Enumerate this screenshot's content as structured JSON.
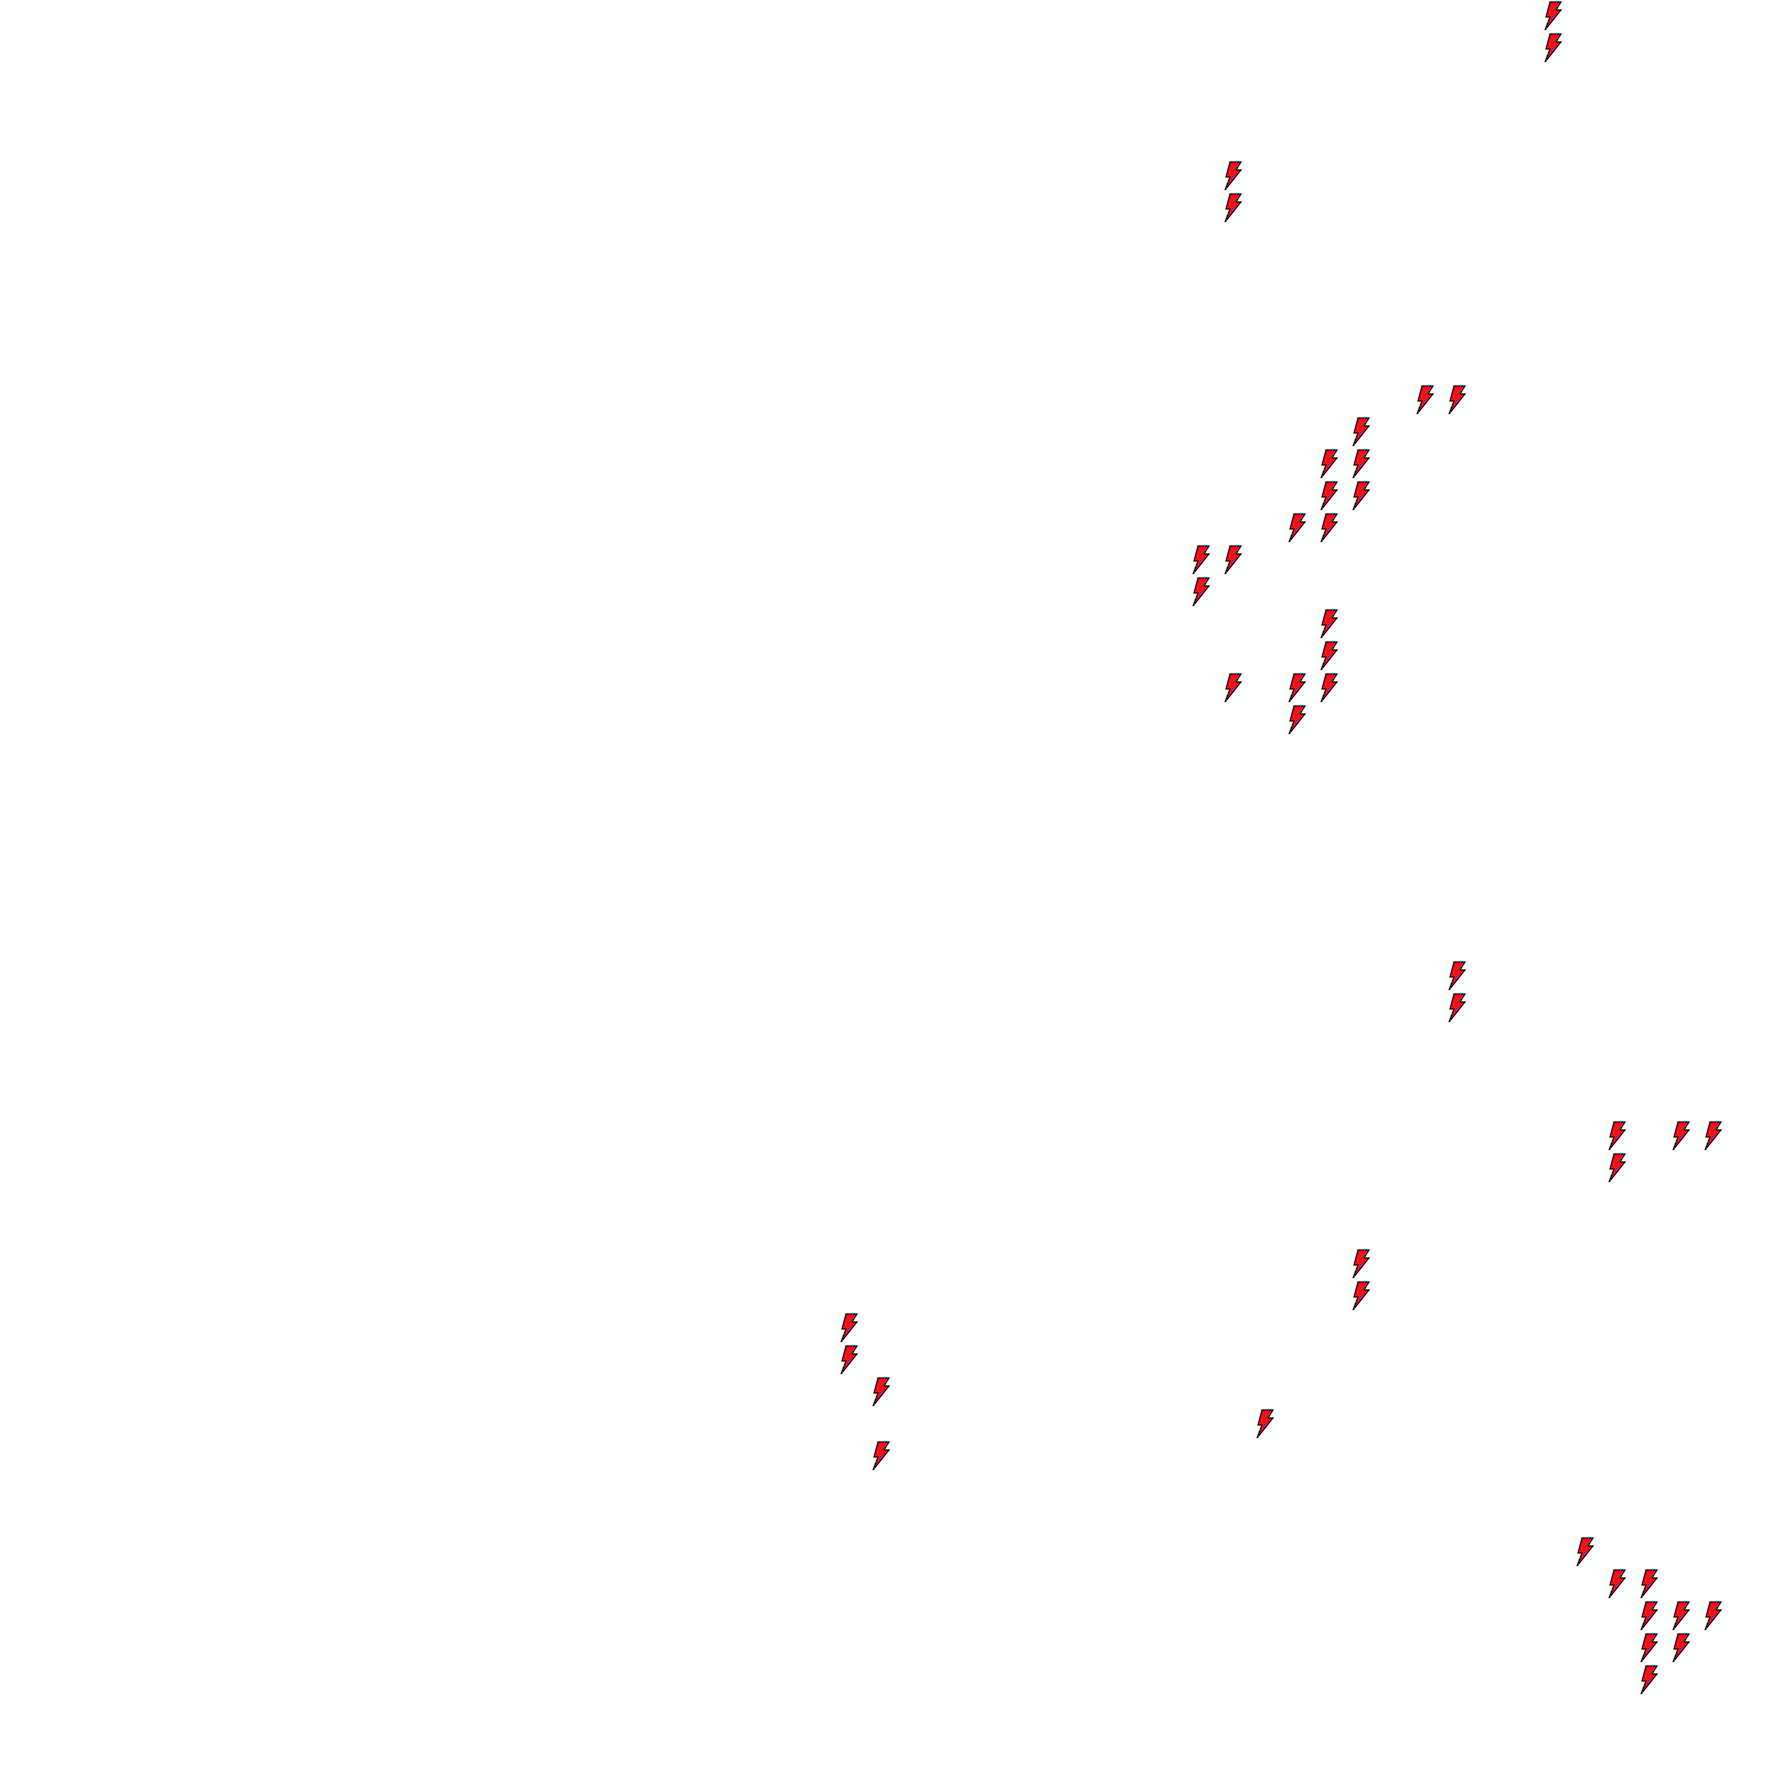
{
  "board": {
    "grid_columns": 56,
    "grid_rows": 56,
    "icon": "lightning-bolt-icon",
    "icon_fill": "#f2101c",
    "icon_stroke": "#000000",
    "background": "#ffffff",
    "cells": [
      [
        48,
        0
      ],
      [
        48,
        1
      ],
      [
        38,
        5
      ],
      [
        38,
        6
      ],
      [
        44,
        12
      ],
      [
        45,
        12
      ],
      [
        42,
        13
      ],
      [
        41,
        14
      ],
      [
        42,
        14
      ],
      [
        41,
        15
      ],
      [
        42,
        15
      ],
      [
        40,
        16
      ],
      [
        41,
        16
      ],
      [
        37,
        17
      ],
      [
        38,
        17
      ],
      [
        37,
        18
      ],
      [
        41,
        19
      ],
      [
        41,
        20
      ],
      [
        38,
        21
      ],
      [
        40,
        21
      ],
      [
        41,
        21
      ],
      [
        40,
        22
      ],
      [
        45,
        30
      ],
      [
        45,
        31
      ],
      [
        50,
        35
      ],
      [
        52,
        35
      ],
      [
        53,
        35
      ],
      [
        50,
        36
      ],
      [
        42,
        39
      ],
      [
        42,
        40
      ],
      [
        26,
        41
      ],
      [
        26,
        42
      ],
      [
        27,
        43
      ],
      [
        39,
        44
      ],
      [
        27,
        45
      ],
      [
        49,
        48
      ],
      [
        50,
        49
      ],
      [
        51,
        49
      ],
      [
        51,
        50
      ],
      [
        52,
        50
      ],
      [
        53,
        50
      ],
      [
        51,
        51
      ],
      [
        52,
        51
      ],
      [
        51,
        52
      ]
    ]
  }
}
